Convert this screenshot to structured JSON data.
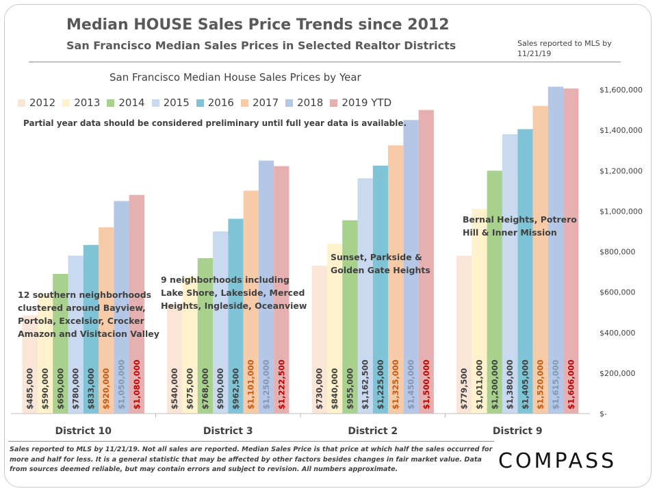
{
  "header": {
    "title": "Median HOUSE Sales Price Trends since 2012",
    "subtitle": "San Francisco Median Sales Prices in Selected Realtor Districts",
    "reported_note": "Sales reported to MLS by 11/21/19"
  },
  "chart_data": {
    "type": "bar",
    "title": "San Francisco Median House Sales Prices by Year",
    "note": "Partial year data should be considered preliminary until full year data is available.",
    "categories": [
      "District 10",
      "District 3",
      "District 2",
      "District 9"
    ],
    "annotations": [
      "12 southern neighborhoods clustered around Bayview, Portola, Excelsior, Crocker Amazon and Visitacion Valley",
      "9 neighborhoods including Lake Shore, Lakeside, Merced Heights, Ingleside, Oceanview",
      "Sunset, Parkside & Golden Gate Heights",
      "Bernal Heights, Potrero Hill & Inner Mission"
    ],
    "ylim": [
      0,
      1600000
    ],
    "y_ticks": [
      0,
      200000,
      400000,
      600000,
      800000,
      1000000,
      1200000,
      1400000,
      1600000
    ],
    "y_tick_labels": [
      "$-",
      "$200,000",
      "$400,000",
      "$600,000",
      "$800,000",
      "$1,000,000",
      "$1,200,000",
      "$1,400,000",
      "$1,600,000"
    ],
    "y_axis_position": "right",
    "grid": false,
    "legend_position": "top-left",
    "series": [
      {
        "name": "2012",
        "color": "#fbe5d6",
        "label_color": "#404040",
        "values": [
          485000,
          540000,
          730000,
          779500
        ],
        "labels": [
          "$485,000",
          "$540,000",
          "$730,000",
          "$779,500"
        ]
      },
      {
        "name": "2013",
        "color": "#fff2cc",
        "label_color": "#404040",
        "values": [
          590000,
          675000,
          840000,
          1011000
        ],
        "labels": [
          "$590,000",
          "$675,000",
          "$840,000",
          "$1,011,000"
        ]
      },
      {
        "name": "2014",
        "color": "#a9d18e",
        "label_color": "#404040",
        "values": [
          690000,
          768000,
          955000,
          1200000
        ],
        "labels": [
          "$690,000",
          "$768,000",
          "$955,000",
          "$1,200,000"
        ]
      },
      {
        "name": "2015",
        "color": "#c9d9ef",
        "label_color": "#404040",
        "values": [
          780000,
          900000,
          1162500,
          1380000
        ],
        "labels": [
          "$780,000",
          "$900,000",
          "$1,162,500",
          "$1,380,000"
        ]
      },
      {
        "name": "2016",
        "color": "#7fc4d6",
        "label_color": "#404040",
        "values": [
          833000,
          962500,
          1225000,
          1405000
        ],
        "labels": [
          "$833,000",
          "$962,500",
          "$1,225,000",
          "$1,405,000"
        ]
      },
      {
        "name": "2017",
        "color": "#f8cba8",
        "label_color": "#c55a11",
        "values": [
          920000,
          1101000,
          1325000,
          1520000
        ],
        "labels": [
          "$920,000",
          "$1,101,000",
          "$1,325,000",
          "$1,520,000"
        ]
      },
      {
        "name": "2018",
        "color": "#b4c7e7",
        "label_color": "#8497b0",
        "values": [
          1050000,
          1250000,
          1450000,
          1615000
        ],
        "labels": [
          "$1,050,000",
          "$1,250,000",
          "$1,450,000",
          "$1,615,000"
        ]
      },
      {
        "name": "2019 YTD",
        "color": "#e6b0b0",
        "label_color": "#c00000",
        "values": [
          1080000,
          1222500,
          1500000,
          1606000
        ],
        "labels": [
          "$1,080,000",
          "$1,222,500",
          "$1,500,000",
          "$1,606,000"
        ]
      }
    ]
  },
  "footer": {
    "footnote": "Sales reported to MLS by 11/21/19. Not all sales are reported. Median Sales Price is that price at which half the sales occurred for more and half for less. It is a general statistic that may be affected by other factors besides changes in fair market value. Data from sources deemed reliable, but may contain errors and subject to revision.  All numbers approximate.",
    "logo_text": "COMPASS"
  }
}
